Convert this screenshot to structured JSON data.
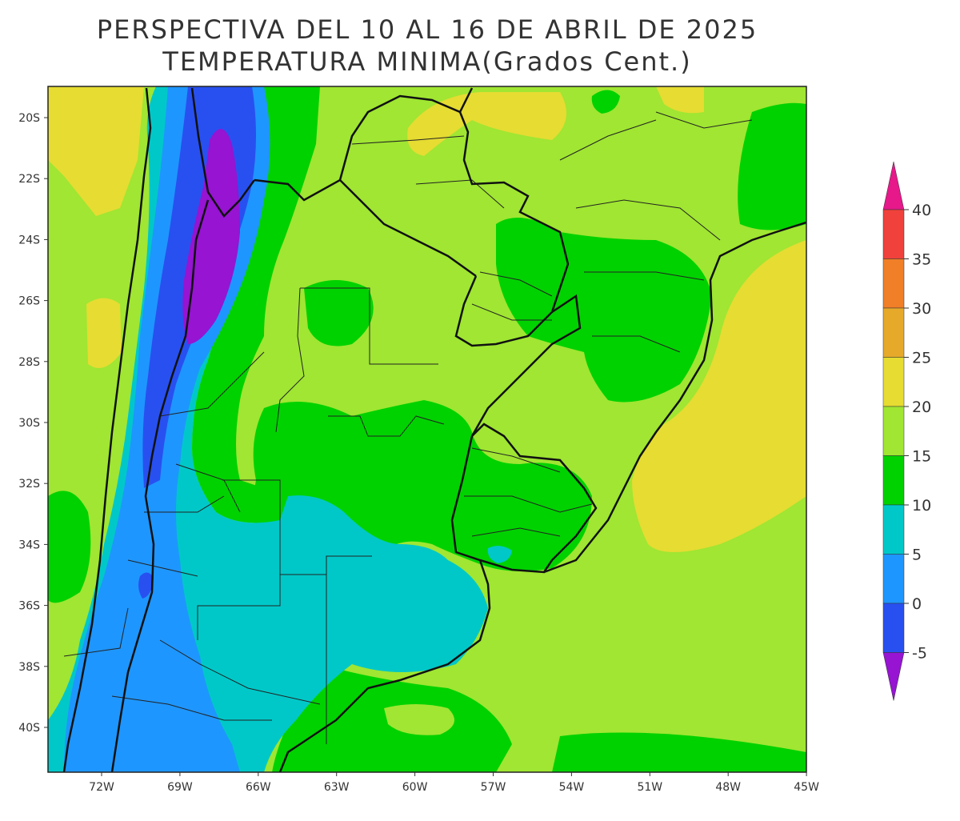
{
  "title_line1": "PERSPECTIVA DEL 10 AL 16 DE ABRIL DE 2025",
  "title_line2": "TEMPERATURA MINIMA(Grados Cent.)",
  "lat_labels": [
    "20S",
    "22S",
    "24S",
    "26S",
    "28S",
    "30S",
    "32S",
    "34S",
    "36S",
    "38S",
    "40S"
  ],
  "lon_labels": [
    "72W",
    "69W",
    "66W",
    "63W",
    "60W",
    "57W",
    "54W",
    "51W",
    "48W",
    "45W"
  ],
  "colorbar": {
    "labels": [
      "40",
      "35",
      "30",
      "25",
      "20",
      "15",
      "10",
      "5",
      "0",
      "-5"
    ],
    "colors": {
      "above_40": "#e6188a",
      "35_40": "#f0413c",
      "30_35": "#f07f28",
      "25_30": "#e6a92a",
      "20_25": "#e6dc32",
      "15_20": "#a0e632",
      "10_15": "#00d200",
      "5_10": "#00c8c8",
      "0_5": "#1e96ff",
      "m5_0": "#2850f0",
      "below_m5": "#9614d2"
    }
  }
}
